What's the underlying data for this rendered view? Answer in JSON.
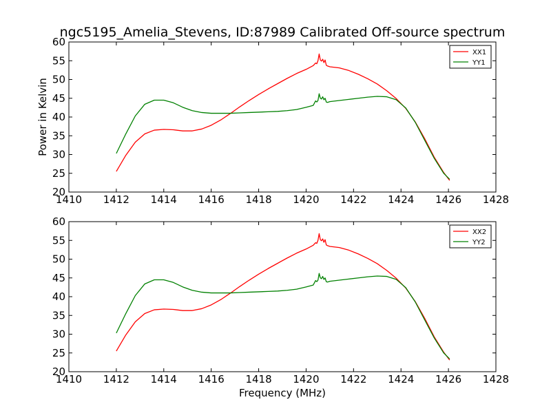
{
  "figure": {
    "title": "ngc5195_Amelia_Stevens, ID:87989 Calibrated Off-source spectrum",
    "background": "#ffffff"
  },
  "chart_data": [
    {
      "type": "line",
      "title": "ngc5195_Amelia_Stevens, ID:87989 Calibrated Off-source spectrum",
      "xlabel": "",
      "ylabel": "Power in Kelvin",
      "xlim": [
        1410,
        1428
      ],
      "ylim": [
        20,
        60
      ],
      "xticks": [
        1410,
        1412,
        1414,
        1416,
        1418,
        1420,
        1422,
        1424,
        1426,
        1428
      ],
      "yticks": [
        20,
        25,
        30,
        35,
        40,
        45,
        50,
        55,
        60
      ],
      "grid": false,
      "legend": "top-right",
      "series": [
        {
          "name": "XX1",
          "color": "#ff0000",
          "x": [
            1412.0,
            1412.4,
            1412.8,
            1413.2,
            1413.6,
            1414.0,
            1414.4,
            1414.8,
            1415.2,
            1415.6,
            1416.0,
            1416.4,
            1416.8,
            1417.2,
            1417.6,
            1418.0,
            1418.4,
            1418.8,
            1419.2,
            1419.6,
            1420.0,
            1420.3,
            1420.4,
            1420.45,
            1420.5,
            1420.55,
            1420.6,
            1420.65,
            1420.7,
            1420.75,
            1420.8,
            1420.85,
            1420.9,
            1420.95,
            1421.0,
            1421.4,
            1421.8,
            1422.2,
            1422.6,
            1423.0,
            1423.4,
            1423.8,
            1424.2,
            1424.6,
            1425.0,
            1425.4,
            1425.8,
            1426.05
          ],
          "y": [
            25.5,
            29.8,
            33.3,
            35.5,
            36.5,
            36.7,
            36.6,
            36.3,
            36.3,
            36.8,
            37.8,
            39.2,
            40.9,
            42.7,
            44.4,
            46.0,
            47.5,
            48.9,
            50.3,
            51.6,
            52.7,
            53.7,
            54.4,
            54.2,
            55.0,
            56.8,
            55.2,
            54.9,
            55.4,
            54.5,
            55.2,
            53.8,
            53.6,
            53.5,
            53.4,
            53.1,
            52.4,
            51.4,
            50.2,
            48.8,
            47.0,
            44.9,
            42.3,
            38.7,
            34.2,
            29.3,
            25.2,
            23.1
          ]
        },
        {
          "name": "YY1",
          "color": "#008000",
          "x": [
            1412.0,
            1412.4,
            1412.8,
            1413.2,
            1413.6,
            1414.0,
            1414.4,
            1414.8,
            1415.2,
            1415.6,
            1416.0,
            1416.4,
            1416.8,
            1417.2,
            1417.6,
            1418.0,
            1418.4,
            1418.8,
            1419.2,
            1419.6,
            1420.0,
            1420.3,
            1420.4,
            1420.45,
            1420.5,
            1420.55,
            1420.6,
            1420.65,
            1420.7,
            1420.75,
            1420.8,
            1420.85,
            1420.9,
            1420.95,
            1421.0,
            1421.4,
            1421.8,
            1422.2,
            1422.6,
            1423.0,
            1423.4,
            1423.8,
            1424.2,
            1424.6,
            1425.0,
            1425.4,
            1425.8,
            1426.05
          ],
          "y": [
            30.3,
            35.5,
            40.3,
            43.4,
            44.5,
            44.5,
            43.8,
            42.6,
            41.7,
            41.2,
            41.0,
            41.0,
            41.0,
            41.1,
            41.2,
            41.3,
            41.4,
            41.5,
            41.7,
            42.0,
            42.6,
            43.1,
            44.3,
            44.0,
            44.4,
            46.2,
            45.0,
            44.8,
            45.4,
            44.6,
            45.0,
            44.0,
            43.9,
            44.0,
            44.1,
            44.4,
            44.7,
            45.0,
            45.3,
            45.5,
            45.4,
            44.6,
            42.4,
            38.6,
            33.8,
            29.0,
            25.0,
            23.4
          ]
        }
      ]
    },
    {
      "type": "line",
      "title": "",
      "xlabel": "Frequency (MHz)",
      "ylabel": "",
      "xlim": [
        1410,
        1428
      ],
      "ylim": [
        20,
        60
      ],
      "xticks": [
        1410,
        1412,
        1414,
        1416,
        1418,
        1420,
        1422,
        1424,
        1426,
        1428
      ],
      "yticks": [
        20,
        25,
        30,
        35,
        40,
        45,
        50,
        55,
        60
      ],
      "grid": false,
      "legend": "top-right",
      "series": [
        {
          "name": "XX2",
          "color": "#ff0000",
          "x": [
            1412.0,
            1412.4,
            1412.8,
            1413.2,
            1413.6,
            1414.0,
            1414.4,
            1414.8,
            1415.2,
            1415.6,
            1416.0,
            1416.4,
            1416.8,
            1417.2,
            1417.6,
            1418.0,
            1418.4,
            1418.8,
            1419.2,
            1419.6,
            1420.0,
            1420.3,
            1420.4,
            1420.45,
            1420.5,
            1420.55,
            1420.6,
            1420.65,
            1420.7,
            1420.75,
            1420.8,
            1420.85,
            1420.9,
            1420.95,
            1421.0,
            1421.4,
            1421.8,
            1422.2,
            1422.6,
            1423.0,
            1423.4,
            1423.8,
            1424.2,
            1424.6,
            1425.0,
            1425.4,
            1425.8,
            1426.05
          ],
          "y": [
            25.5,
            29.8,
            33.3,
            35.5,
            36.5,
            36.7,
            36.6,
            36.3,
            36.3,
            36.8,
            37.8,
            39.2,
            40.9,
            42.7,
            44.4,
            46.0,
            47.5,
            48.9,
            50.3,
            51.6,
            52.7,
            53.7,
            54.4,
            54.2,
            55.0,
            56.8,
            55.2,
            54.9,
            55.4,
            54.5,
            55.2,
            53.8,
            53.6,
            53.5,
            53.4,
            53.1,
            52.4,
            51.4,
            50.2,
            48.8,
            47.0,
            44.9,
            42.3,
            38.7,
            34.2,
            29.3,
            25.2,
            23.1
          ]
        },
        {
          "name": "YY2",
          "color": "#008000",
          "x": [
            1412.0,
            1412.4,
            1412.8,
            1413.2,
            1413.6,
            1414.0,
            1414.4,
            1414.8,
            1415.2,
            1415.6,
            1416.0,
            1416.4,
            1416.8,
            1417.2,
            1417.6,
            1418.0,
            1418.4,
            1418.8,
            1419.2,
            1419.6,
            1420.0,
            1420.3,
            1420.4,
            1420.45,
            1420.5,
            1420.55,
            1420.6,
            1420.65,
            1420.7,
            1420.75,
            1420.8,
            1420.85,
            1420.9,
            1420.95,
            1421.0,
            1421.4,
            1421.8,
            1422.2,
            1422.6,
            1423.0,
            1423.4,
            1423.8,
            1424.2,
            1424.6,
            1425.0,
            1425.4,
            1425.8,
            1426.05
          ],
          "y": [
            30.3,
            35.5,
            40.3,
            43.4,
            44.5,
            44.5,
            43.8,
            42.6,
            41.7,
            41.2,
            41.0,
            41.0,
            41.0,
            41.1,
            41.2,
            41.3,
            41.4,
            41.5,
            41.7,
            42.0,
            42.6,
            43.1,
            44.3,
            44.0,
            44.4,
            46.2,
            45.0,
            44.8,
            45.4,
            44.6,
            45.0,
            44.0,
            43.9,
            44.0,
            44.1,
            44.4,
            44.7,
            45.0,
            45.3,
            45.5,
            45.4,
            44.6,
            42.4,
            38.6,
            33.8,
            29.0,
            25.0,
            23.4
          ]
        }
      ]
    }
  ]
}
